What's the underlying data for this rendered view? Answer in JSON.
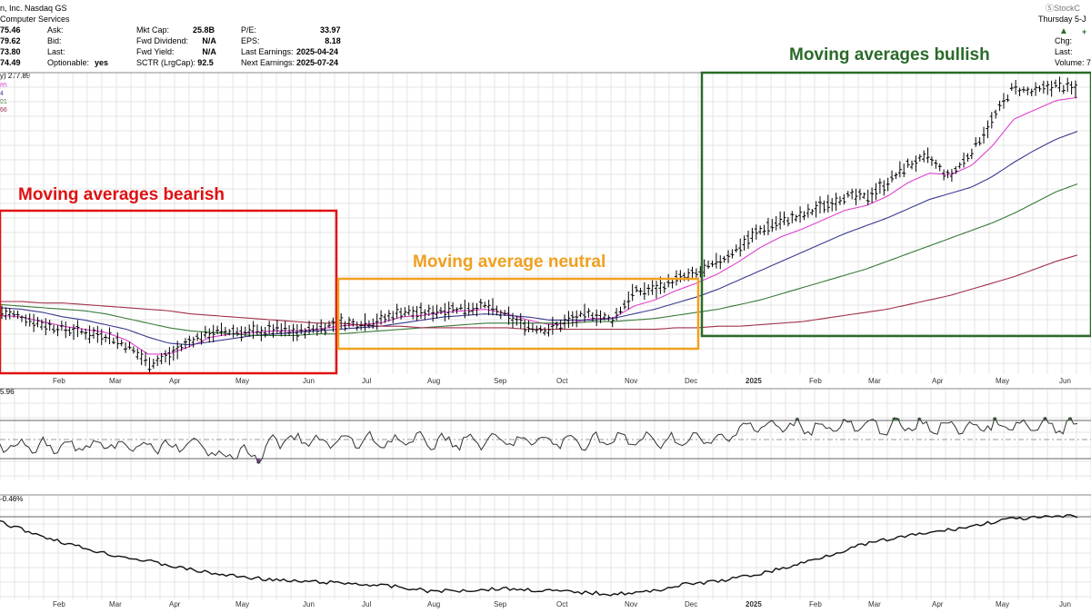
{
  "header": {
    "company": "n, Inc. Nasdaq GS",
    "sector": "Computer Services",
    "date_label": "Thursday 5-J",
    "brand": "ⓈStockC",
    "prices": [
      "75.46",
      "79.62",
      "73.80",
      "74.49"
    ],
    "col1": [
      {
        "label": "Ask:",
        "value": ""
      },
      {
        "label": "Bid:",
        "value": ""
      },
      {
        "label": "Last:",
        "value": ""
      },
      {
        "label": "Optionable:",
        "value": "yes"
      }
    ],
    "col2": [
      {
        "label": "Mkt Cap:",
        "value": "25.8B"
      },
      {
        "label": "Fwd Dividend:",
        "value": "N/A"
      },
      {
        "label": "Fwd Yield:",
        "value": "N/A"
      },
      {
        "label": "SCTR (LrgCap):",
        "value": "92.5"
      }
    ],
    "col3": [
      {
        "label": "P/E:",
        "value": "33.97"
      },
      {
        "label": "EPS:",
        "value": "8.18"
      },
      {
        "label": "Last Earnings:",
        "value": "2025-04-24"
      },
      {
        "label": "Next Earnings:",
        "value": "2025-07-24"
      }
    ],
    "right_col": [
      "Chg:",
      "Last:",
      "Volume: 7"
    ],
    "right_symbols": [
      "▲",
      "+"
    ]
  },
  "legend": {
    "line1": "y) 277.89",
    "ma_values": [
      "85",
      "4",
      "01",
      "66"
    ],
    "ma_colors": [
      "#e040d0",
      "#3a3a90",
      "#3a7a3a",
      "#a0304a"
    ]
  },
  "annotations": [
    {
      "text": "Moving averages bearish",
      "color": "#e01010"
    },
    {
      "text": "Moving average neutral",
      "color": "#f0a020"
    },
    {
      "text": "Moving averages bullish",
      "color": "#2a6a2a"
    }
  ],
  "panels": {
    "rsi_label": "5.96",
    "rel_label": "-0.46%"
  },
  "colors": {
    "price": "#000000",
    "ma_fast": "#e040d0",
    "ma_mid": "#3a3a90",
    "ma_slow": "#3a7a3a",
    "ma_long": "#a0304a",
    "rsi_fill_up": "#4a7a4a",
    "rsi_fill_down": "#7a4a8a"
  },
  "chart_data": {
    "type": "line",
    "x_labels": [
      "Feb",
      "Mar",
      "Apr",
      "May",
      "Jun",
      "Jul",
      "Aug",
      "Sep",
      "Oct",
      "Nov",
      "Dec",
      "2025",
      "Feb",
      "Mar",
      "Apr",
      "May",
      "Jun"
    ],
    "series": [
      {
        "values": [
          55,
          52,
          47,
          44,
          42,
          40,
          33,
          22,
          27,
          37,
          42,
          43,
          42,
          44,
          42,
          45,
          48,
          48,
          50,
          56,
          54,
          57,
          58,
          59,
          52,
          46,
          44,
          50,
          54,
          50,
          68,
          70,
          76,
          80,
          87,
          97,
          108,
          114,
          117,
          124,
          130,
          129,
          138,
          150,
          155,
          142,
          158,
          178,
          200,
          197,
          202,
          199
        ]
      },
      {
        "values": [
          53,
          52,
          49,
          46,
          44,
          42,
          37,
          28,
          28,
          33,
          39,
          41,
          42,
          43,
          43,
          44,
          46,
          47,
          48,
          52,
          53,
          55,
          56,
          57,
          54,
          50,
          47,
          48,
          51,
          51,
          59,
          63,
          69,
          74,
          80,
          88,
          97,
          104,
          109,
          115,
          121,
          124,
          130,
          139,
          145,
          144,
          150,
          163,
          180,
          186,
          192,
          194
        ]
      },
      {
        "values": [
          58,
          57,
          55,
          52,
          50,
          47,
          44,
          39,
          35,
          34,
          36,
          38,
          40,
          41,
          42,
          43,
          44,
          45,
          46,
          48,
          50,
          52,
          53,
          54,
          53,
          52,
          50,
          50,
          50,
          51,
          54,
          57,
          61,
          65,
          70,
          76,
          82,
          88,
          94,
          100,
          106,
          111,
          116,
          122,
          128,
          132,
          136,
          143,
          152,
          160,
          167,
          172
        ]
      },
      {
        "values": [
          60,
          59,
          58,
          57,
          56,
          54,
          51,
          48,
          45,
          43,
          42,
          41,
          40,
          40,
          40,
          41,
          41,
          42,
          43,
          44,
          45,
          46,
          47,
          48,
          48,
          48,
          48,
          48,
          49,
          49,
          50,
          51,
          53,
          55,
          57,
          60,
          63,
          67,
          71,
          75,
          79,
          83,
          88,
          93,
          98,
          103,
          108,
          113,
          119,
          126,
          133,
          138
        ]
      },
      {
        "values": [
          62,
          62,
          61,
          61,
          60,
          59,
          58,
          57,
          56,
          54,
          53,
          52,
          51,
          50,
          49,
          48,
          48,
          47,
          46,
          46,
          45,
          45,
          45,
          45,
          45,
          44,
          44,
          44,
          44,
          44,
          44,
          44,
          45,
          45,
          46,
          46,
          47,
          48,
          49,
          51,
          53,
          55,
          57,
          60,
          63,
          66,
          70,
          74,
          78,
          83,
          88,
          92
        ]
      }
    ]
  }
}
